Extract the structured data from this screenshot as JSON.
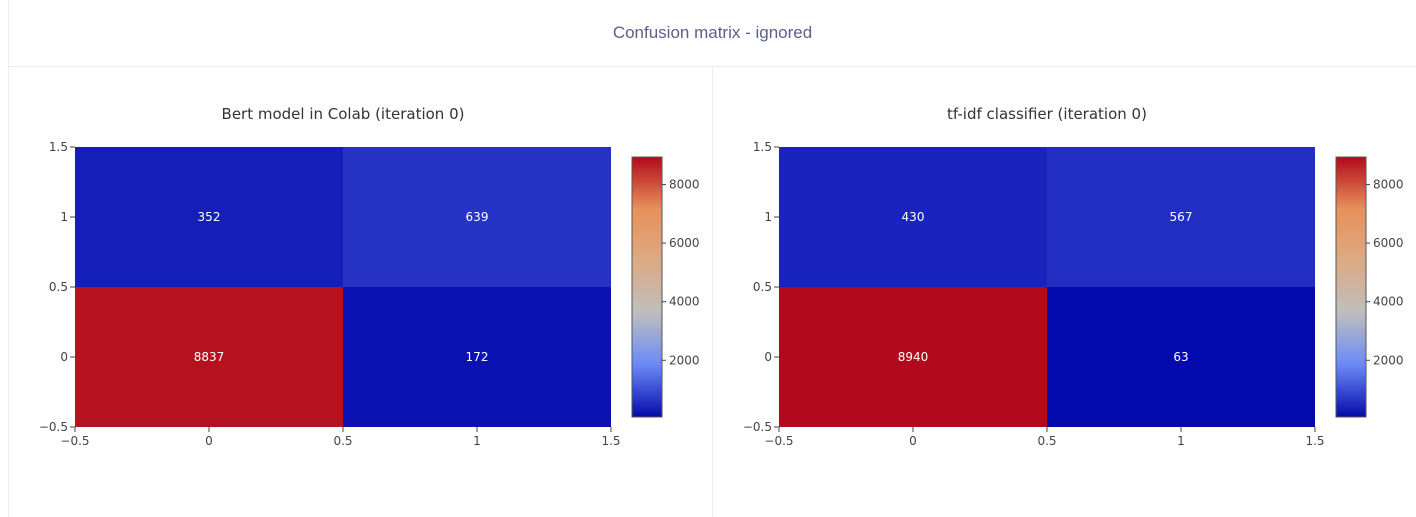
{
  "header": {
    "title": "Confusion matrix - ignored"
  },
  "chart_data": [
    {
      "type": "heatmap",
      "title": "Bert model in Colab (iteration 0)",
      "x": [
        0,
        1
      ],
      "y": [
        0,
        1
      ],
      "z": [
        [
          8837,
          172
        ],
        [
          352,
          639
        ]
      ],
      "xlim": [
        -0.5,
        1.5
      ],
      "ylim": [
        -0.5,
        1.5
      ],
      "xticks": [
        "−0.5",
        "0",
        "0.5",
        "1",
        "1.5"
      ],
      "yticks": [
        "−0.5",
        "0",
        "0.5",
        "1",
        "1.5"
      ],
      "colorscale": [
        "#050aac",
        "#6a89f7",
        "#bebebe",
        "#dcaa84",
        "#e6915a",
        "#b20a1c"
      ],
      "colorbar": {
        "ticks": [
          "2000",
          "4000",
          "6000",
          "8000"
        ],
        "tick_values": [
          2000,
          4000,
          6000,
          8000
        ],
        "range": [
          63,
          8940
        ]
      },
      "grid": false
    },
    {
      "type": "heatmap",
      "title": "tf-idf classifier (iteration 0)",
      "x": [
        0,
        1
      ],
      "y": [
        0,
        1
      ],
      "z": [
        [
          8940,
          63
        ],
        [
          430,
          567
        ]
      ],
      "xlim": [
        -0.5,
        1.5
      ],
      "ylim": [
        -0.5,
        1.5
      ],
      "xticks": [
        "−0.5",
        "0",
        "0.5",
        "1",
        "1.5"
      ],
      "yticks": [
        "−0.5",
        "0",
        "0.5",
        "1",
        "1.5"
      ],
      "colorscale": [
        "#050aac",
        "#6a89f7",
        "#bebebe",
        "#dcaa84",
        "#e6915a",
        "#b20a1c"
      ],
      "colorbar": {
        "ticks": [
          "2000",
          "4000",
          "6000",
          "8000"
        ],
        "tick_values": [
          2000,
          4000,
          6000,
          8000
        ],
        "range": [
          63,
          8940
        ]
      },
      "grid": false
    }
  ]
}
